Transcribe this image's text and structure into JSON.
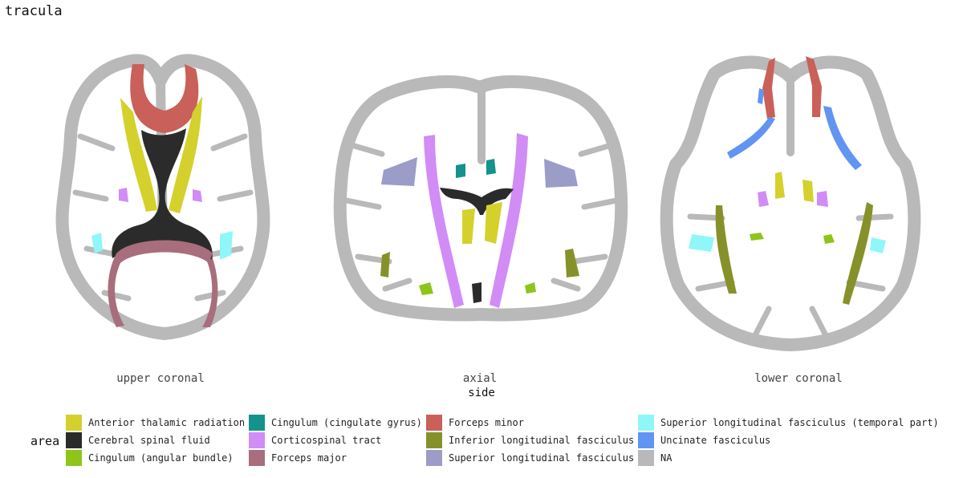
{
  "title": "tracula",
  "views": [
    {
      "id": "upper",
      "label": "upper coronal"
    },
    {
      "id": "axial",
      "label": "axial"
    },
    {
      "id": "lower",
      "label": "lower coronal"
    }
  ],
  "axis_title": "side",
  "legend": {
    "title": "area",
    "items": [
      {
        "label": "Anterior thalamic radiation",
        "color": "#d4d12c"
      },
      {
        "label": "Cerebral spinal fluid",
        "color": "#2b2b2b"
      },
      {
        "label": "Cingulum (angular bundle)",
        "color": "#8dc51a"
      },
      {
        "label": "Cingulum (cingulate gyrus)",
        "color": "#13938c"
      },
      {
        "label": "Corticospinal tract",
        "color": "#d18cf5"
      },
      {
        "label": "Forceps major",
        "color": "#a86e7d"
      },
      {
        "label": "Forceps minor",
        "color": "#c9605a"
      },
      {
        "label": "Inferior longitudinal fasciculus",
        "color": "#87912a"
      },
      {
        "label": "Superior longitudinal fasciculus",
        "color": "#9c9cc9"
      },
      {
        "label": "Superior longitudinal fasciculus (temporal part)",
        "color": "#8ff7f7"
      },
      {
        "label": "Uncinate fasciculus",
        "color": "#6294f2"
      },
      {
        "label": "NA",
        "color": "#b9b9b9"
      }
    ]
  }
}
